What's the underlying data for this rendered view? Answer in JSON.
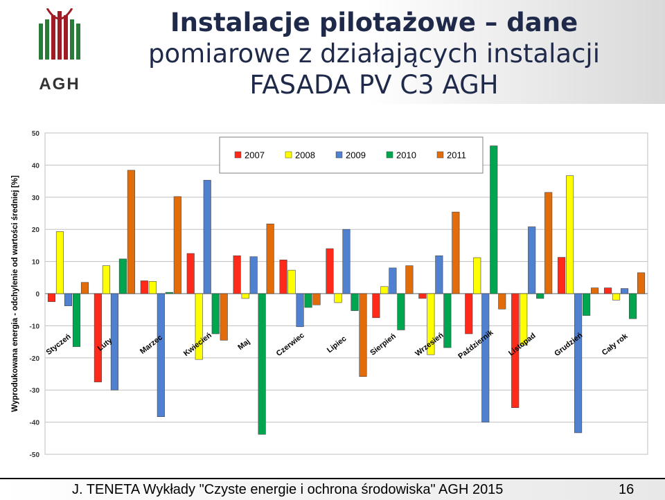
{
  "slide": {
    "title_line1": "Instalacje pilotażowe – dane",
    "title_line2": "pomiarowe z działających instalacji",
    "title_line3": "FASADA PV C3 AGH",
    "logo_text": "AGH",
    "footer": "J. TENETA Wykłady \"Czyste energie i ochrona środowiska\" AGH 2015",
    "page_number": "16"
  },
  "colors": {
    "2007": "#ff2a1a",
    "2008": "#ffff00",
    "2009": "#4f81d0",
    "2010": "#00a550",
    "2011": "#e36c0a",
    "logo_green": "#2a7a3a",
    "logo_red": "#a01c24"
  },
  "chart_data": {
    "type": "bar",
    "ylabel": "Wyprodukowana energia - odchylenie od wartości średniej [%]",
    "ylim": [
      -50,
      50
    ],
    "yticks": [
      -50,
      -40,
      -30,
      -20,
      -10,
      0,
      10,
      20,
      30,
      40,
      50
    ],
    "grid": true,
    "legend_position": "top",
    "categories": [
      "Styczeń",
      "Luty",
      "Marzec",
      "Kwiecień",
      "Maj",
      "Czerwiec",
      "Lipiec",
      "Sierpień",
      "Wrzesień",
      "Październik",
      "Listopad",
      "Grudzień",
      "Cały rok"
    ],
    "series": [
      {
        "name": "2007",
        "values": [
          -2.5,
          -27.5,
          4,
          12.5,
          11.8,
          10.5,
          14,
          -7.5,
          -1.5,
          -12.5,
          -35.5,
          11.3,
          1.8
        ]
      },
      {
        "name": "2008",
        "values": [
          19.3,
          8.7,
          3.8,
          -20.5,
          -1.5,
          7.3,
          -2.8,
          2.2,
          -19,
          11.2,
          -16,
          36.7,
          -2
        ]
      },
      {
        "name": "2009",
        "values": [
          -3.8,
          -30,
          -38.3,
          35.3,
          11.5,
          -10.3,
          20,
          8,
          11.8,
          -40,
          20.8,
          -43.3,
          1.6
        ]
      },
      {
        "name": "2010",
        "values": [
          -16.5,
          10.8,
          0.4,
          -12.5,
          -43.8,
          -4.3,
          -5.3,
          -11.3,
          -16.8,
          46,
          -1.5,
          -6.8,
          -7.8
        ]
      },
      {
        "name": "2011",
        "values": [
          3.5,
          38.4,
          30.2,
          -14.5,
          21.7,
          -3.5,
          -25.8,
          8.7,
          25.4,
          -4.8,
          31.5,
          1.8,
          6.5
        ]
      }
    ]
  }
}
